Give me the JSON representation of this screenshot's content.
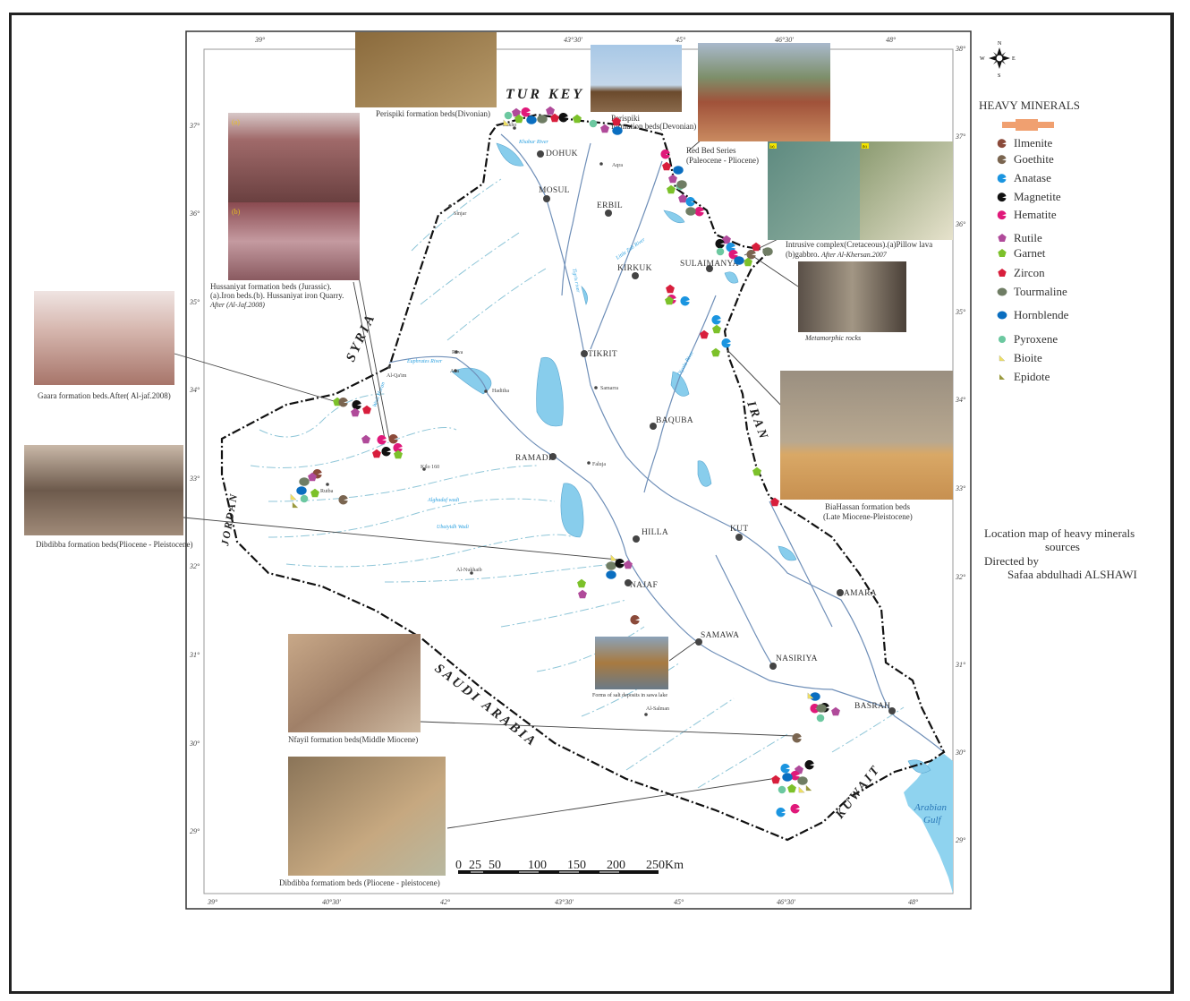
{
  "map": {
    "countries": [
      "TUR KEY",
      "SYRIA",
      "JORDAN",
      "SAUDI ARABIA",
      "KUWAIT",
      "IRAN"
    ],
    "sea": [
      "Arabian",
      "Gulf"
    ],
    "cities": [
      "DOHUK",
      "Aqra",
      "MOSUL",
      "ERBIL",
      "Sinjar",
      "KIRKUK",
      "SULAIMANYA",
      "TIKRIT",
      "Samarra",
      "Al-Qa'im",
      "Rava",
      "Ana",
      "Haditha",
      "BAQUBA",
      "RAMADI",
      "Faluja",
      "Kilo 160",
      "Rutba",
      "HILLA",
      "KUT",
      "Al-Nukhaib",
      "NAJAF",
      "AMARA",
      "SAMAWA",
      "NASIRIYA",
      "BASRAH",
      "Al-Salman",
      "Zakho"
    ],
    "rivers": [
      "Euphrates River",
      "Khabur River",
      "Tigris river",
      "Little Zab River",
      "Diyala River",
      "Wadi Horan",
      "Alghadaf wadi",
      "Ubaiyidh Wadi"
    ],
    "longitude_ticks_top": [
      "39°",
      "43°30'",
      "45°",
      "46°30'",
      "48°"
    ],
    "longitude_ticks_bottom": [
      "39°",
      "40°30'",
      "42°",
      "43°30'",
      "45°",
      "46°30'",
      "48°"
    ],
    "latitude_ticks": [
      "38°",
      "37°",
      "36°",
      "35°",
      "34°",
      "33°",
      "32°",
      "31°",
      "30°",
      "29°"
    ],
    "scale_bar": {
      "labels": [
        "0",
        "25",
        "50",
        "100",
        "150",
        "200",
        "250Km"
      ]
    }
  },
  "photos": [
    {
      "caption": "Perispiki formation beds(Divonian)",
      "colors": [
        "#8a6a3c",
        "#b79a6a"
      ]
    },
    {
      "caption": [
        "Perispiki",
        "formation beds(Devonian)"
      ],
      "colors": [
        "#a8c8e6",
        "#6b4a2c"
      ]
    },
    {
      "caption": [
        "Red Bed Series",
        "(Paleocene - Pliocene)"
      ],
      "colors": [
        "#a9b9cc",
        "#a0523a"
      ]
    },
    {
      "caption": [
        "Intrusive complex(Cretaceous).(a)Pillow lava",
        "(b)gabbro."
      ],
      "caption_italic": "After Al-Khersan.2007",
      "panel_labels": [
        "(a)",
        "(b)"
      ],
      "colors": [
        "#5e8a80",
        "#d8d2b0"
      ]
    },
    {
      "caption": "Metamorphic rocks",
      "colors": [
        "#5a5048",
        "#a29684"
      ]
    },
    {
      "caption": [
        "BiaHassan formation beds",
        "(Late Miocene-Pleistocene)"
      ],
      "colors": [
        "#9a8f80",
        "#d9a866"
      ]
    },
    {
      "caption": [
        "Hussaniyat formation beds  (Jurassic).",
        "(a).Iron beds.(b).  Hussaniyat iron Quarry."
      ],
      "caption_italic": "After (Al-Jaf.2008)",
      "panel_labels": [
        "(a)",
        "(b)"
      ],
      "colors": [
        "#8a5a5a",
        "#c49aa0"
      ]
    },
    {
      "caption": "Gaara formation beds.After( Al-jaf.2008)",
      "colors": [
        "#d7b8b0",
        "#a7756a"
      ]
    },
    {
      "caption": "Dibdibba formation beds(Pliocene - Pleistocene)",
      "colors": [
        "#9f8a78",
        "#6d5a4c"
      ]
    },
    {
      "caption": "Forms of salt deposits in sawa lake",
      "colors": [
        "#8aa2b8",
        "#a87a40"
      ]
    },
    {
      "caption": "Nfayil formation beds(Middle Miocene)",
      "colors": [
        "#c8a888",
        "#8a7a68"
      ]
    },
    {
      "caption": "Dibdibba formatiom beds (Pliocene - pleistocene)",
      "colors": [
        "#8a7458",
        "#c6a880"
      ]
    }
  ],
  "compass": {
    "n": "N",
    "s": "S",
    "e": "E",
    "w": "W"
  },
  "legend": {
    "title": "HEAVY MINERALS",
    "items": [
      {
        "label": "Ilmenite",
        "color": "#8b4a3a",
        "shape": "crescent"
      },
      {
        "label": "Goethite",
        "color": "#7a6550",
        "shape": "crescent"
      },
      {
        "label": "Anatase",
        "color": "#1b95e0",
        "shape": "crescent"
      },
      {
        "label": "Magnetite",
        "color": "#111111",
        "shape": "crescent"
      },
      {
        "label": "Hematite",
        "color": "#e0197a",
        "shape": "crescent"
      },
      {
        "label": "Rutile",
        "color": "#b04a9a",
        "shape": "pentagon"
      },
      {
        "label": "Garnet",
        "color": "#7cc12a",
        "shape": "pentagon"
      },
      {
        "label": "Zircon",
        "color": "#d81e3c",
        "shape": "pentagon"
      },
      {
        "label": "Tourmaline",
        "color": "#6f7d64",
        "shape": "ellipse"
      },
      {
        "label": "Hornblende",
        "color": "#0a6ec0",
        "shape": "ellipse"
      },
      {
        "label": "Pyroxene",
        "color": "#6cc8a0",
        "shape": "circle"
      },
      {
        "label": "Bioite",
        "color": "#f0e060",
        "shape": "triangle"
      },
      {
        "label": "Epidote",
        "color": "#9a9a40",
        "shape": "triangle"
      }
    ]
  },
  "credits": {
    "line1": "Location map of heavy minerals",
    "line2": "sources",
    "line3": "Directed  by",
    "line4": "Safaa abdulhadi ALSHAWI"
  }
}
